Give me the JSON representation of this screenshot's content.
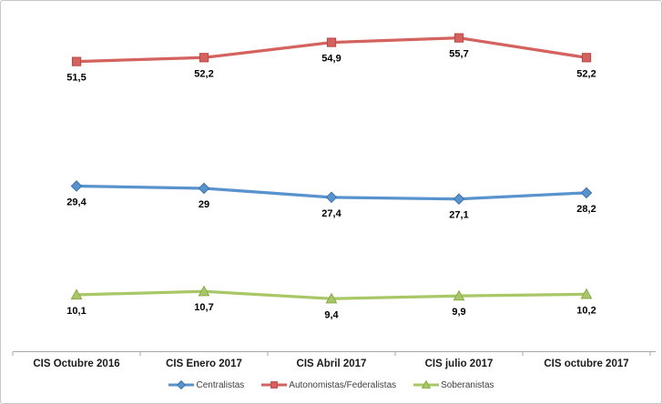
{
  "window": {
    "background_color": "#FFFFFF",
    "border_color": "#C6C6C6"
  },
  "chart_data": {
    "type": "line",
    "title": "",
    "xlabel": "",
    "ylabel": "",
    "categories": [
      "CIS Octubre 2016",
      "CIS Enero 2017",
      "CIS Abril 2017",
      "CIS julio 2017",
      "CIS octubre 2017"
    ],
    "series": [
      {
        "name": "Centralistas",
        "marker": "diamond",
        "color": "#5893CE",
        "marker_border": "#3D73AC",
        "values": [
          29.4,
          29,
          27.4,
          27.1,
          28.2
        ],
        "labels": [
          "29,4",
          "29",
          "27,4",
          "27,1",
          "28,2"
        ]
      },
      {
        "name": "Autonomistas/Federalistas",
        "marker": "square",
        "color": "#D4625E",
        "marker_border": "#B94743",
        "values": [
          51.5,
          52.2,
          54.9,
          55.7,
          52.2
        ],
        "labels": [
          "51,5",
          "52,2",
          "54,9",
          "55,7",
          "52,2"
        ]
      },
      {
        "name": "Soberanistas",
        "marker": "triangle",
        "color": "#A8C766",
        "marker_border": "#89A94B",
        "values": [
          10.1,
          10.7,
          9.4,
          9.9,
          10.2
        ],
        "labels": [
          "10,1",
          "10,7",
          "9,4",
          "9,9",
          "10,2"
        ]
      }
    ],
    "ylim": [
      0,
      60
    ],
    "grid": false,
    "legend_position": "bottom",
    "axis_color": "#A6A6A6",
    "data_label_color": "#000000"
  }
}
